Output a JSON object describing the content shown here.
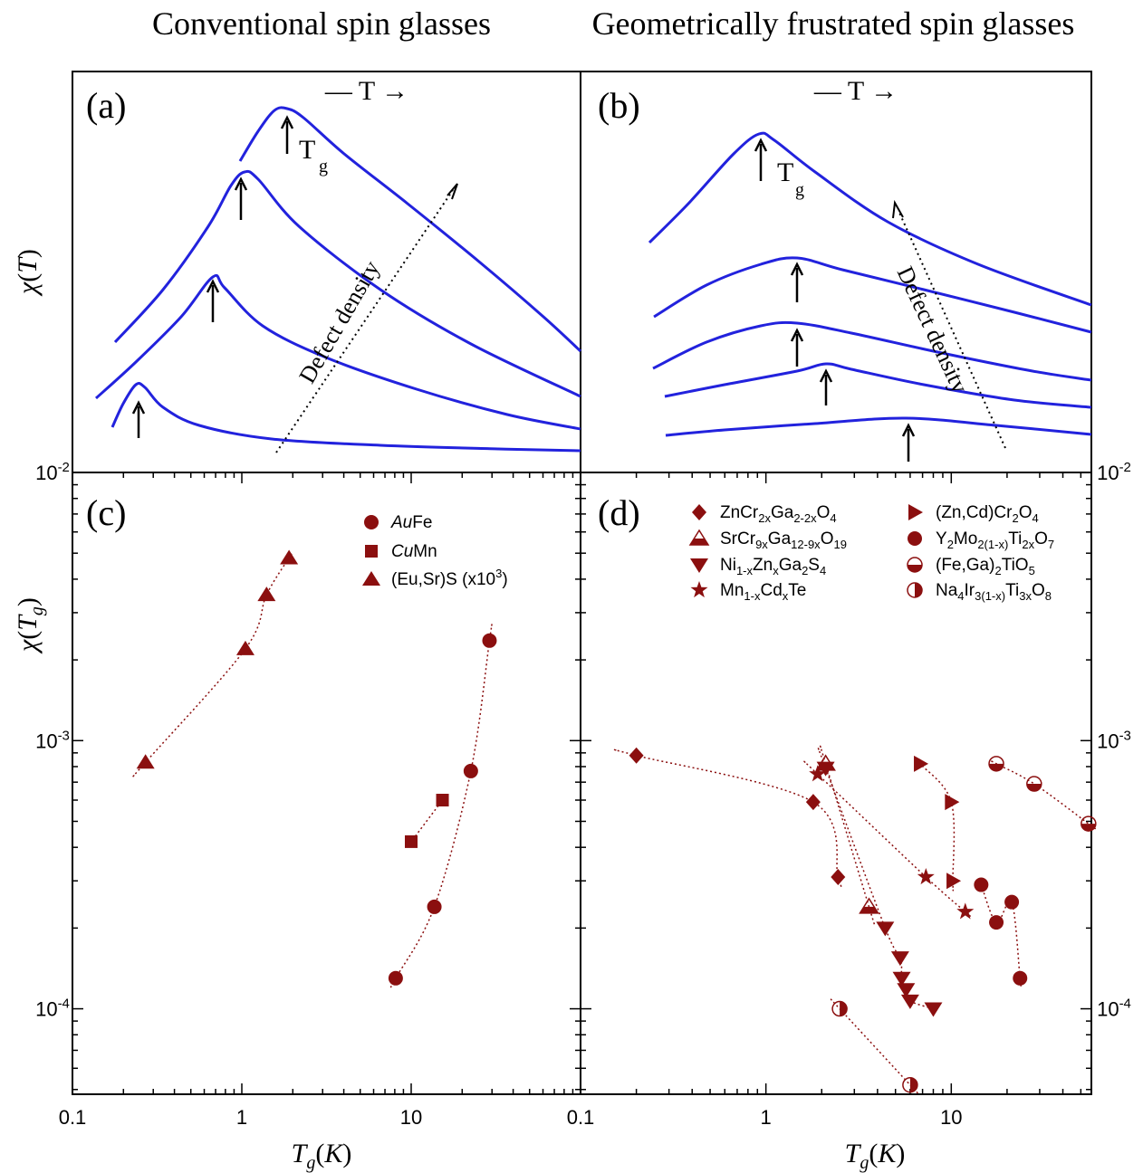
{
  "headings": {
    "left": "Conventional spin glasses",
    "right": "Geometrically frustrated spin glasses"
  },
  "colors": {
    "curve": "#2222dd",
    "marker": "#8b0f0f",
    "axis": "#000000"
  },
  "chart_data": [
    {
      "panel": "(a)",
      "type": "line",
      "ylabel": "χ(T)",
      "annotations": [
        "—T→",
        "T_g",
        "Defect density"
      ],
      "description": "Four susceptibility curves, each with a cusp at T_g (arrow); peak height and T_g increase with defect density."
    },
    {
      "panel": "(b)",
      "type": "line",
      "annotations": [
        "—T→",
        "T_g",
        "Defect density"
      ],
      "description": "Five susceptibility curves with broad maxima at T_g (arrow); peak height decreases with defect density."
    },
    {
      "panel": "(c)",
      "type": "scatter",
      "xlabel": "T_g(K)",
      "ylabel": "χ(T_g)",
      "xscale": "log",
      "yscale": "log",
      "xlim": [
        0.1,
        100
      ],
      "ylim": [
        5e-05,
        0.01
      ],
      "xticks": [
        "0.1",
        "1",
        "10"
      ],
      "yticks": [
        "10^-2",
        "10^-3",
        "10^-4"
      ],
      "legend_position": "top-right",
      "series": [
        {
          "name": "AuFe",
          "italic_prefix": "Au",
          "rest": "Fe",
          "marker": "circle",
          "points": [
            [
              8.1,
              0.00013
            ],
            [
              13.7,
              0.00024
            ],
            [
              22.5,
              0.00077
            ],
            [
              29.0,
              0.00236
            ]
          ]
        },
        {
          "name": "CuMn",
          "italic_prefix": "Cu",
          "rest": "Mn",
          "marker": "square",
          "points": [
            [
              10.0,
              0.00042
            ],
            [
              15.3,
              0.0006
            ]
          ]
        },
        {
          "name": "(Eu,Sr)S (x10^3)",
          "italic_prefix": "",
          "rest": "(Eu,Sr)S (x10",
          "sup": "3",
          "tail": ")",
          "marker": "triangle-up",
          "points": [
            [
              0.27,
              0.00083
            ],
            [
              1.05,
              0.0022
            ],
            [
              1.4,
              0.0035
            ],
            [
              1.9,
              0.0048
            ]
          ]
        }
      ]
    },
    {
      "panel": "(d)",
      "type": "scatter",
      "xlabel": "T_g(K)",
      "xscale": "log",
      "yscale": "log",
      "xlim": [
        0.1,
        60
      ],
      "ylim": [
        5e-05,
        0.01
      ],
      "xticks": [
        "0.1",
        "1",
        "10"
      ],
      "yticks": [
        "10^-2",
        "10^-3",
        "10^-4"
      ],
      "legend_position": "top",
      "series": [
        {
          "name": "ZnCr2xGa2-2xO4",
          "marker": "diamond",
          "points": [
            [
              0.2,
              0.00088
            ],
            [
              1.8,
              0.00059
            ],
            [
              2.45,
              0.00031
            ]
          ]
        },
        {
          "name": "SrCr9xGa12-9xO19",
          "marker": "triangle-half",
          "points": [
            [
              2.1,
              0.00082
            ],
            [
              3.6,
              0.00024
            ]
          ]
        },
        {
          "name": "Ni1-xZnxGa2S4",
          "marker": "triangle-down",
          "points": [
            [
              2.1,
              0.00079
            ],
            [
              4.4,
              0.0002
            ],
            [
              5.3,
              0.000155
            ],
            [
              5.4,
              0.00013
            ],
            [
              5.7,
              0.000118
            ],
            [
              6.0,
              0.000107
            ],
            [
              8.0,
              0.0001
            ]
          ]
        },
        {
          "name": "Mn1-xCdxTe",
          "marker": "star",
          "points": [
            [
              1.9,
              0.00075
            ],
            [
              7.3,
              0.00031
            ],
            [
              11.9,
              0.00023
            ]
          ]
        },
        {
          "name": "(Zn,Cd)Cr2O4",
          "marker": "triangle-right",
          "points": [
            [
              6.8,
              0.00082
            ],
            [
              10.0,
              0.00059
            ],
            [
              10.2,
              0.0003
            ]
          ]
        },
        {
          "name": "Y2Mo2(1-x)Ti2xO7",
          "marker": "circle",
          "points": [
            [
              14.5,
              0.00029
            ],
            [
              17.5,
              0.00021
            ],
            [
              21.2,
              0.00025
            ],
            [
              23.5,
              0.00013
            ]
          ]
        },
        {
          "name": "(Fe,Ga)2TiO5",
          "marker": "circle-half-bottom",
          "points": [
            [
              17.5,
              0.00082
            ],
            [
              28.0,
              0.00069
            ],
            [
              55.0,
              0.00049
            ]
          ]
        },
        {
          "name": "Na4Ir3(1-x)Ti3xO8",
          "marker": "circle-half-right",
          "points": [
            [
              2.5,
              0.0001
            ],
            [
              6.0,
              5.2e-05
            ]
          ]
        }
      ]
    }
  ]
}
